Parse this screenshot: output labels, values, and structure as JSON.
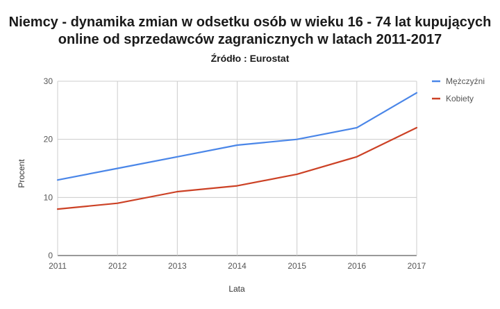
{
  "chart_data": {
    "type": "line",
    "title_line1": "Niemcy - dynamika zmian w odsetku osób w wieku 16 - 74 lat kupujących",
    "title_line2": "online od sprzedawców zagranicznych w latach  2011-2017",
    "subtitle": "Źródło : Eurostat",
    "xlabel": "Lata",
    "ylabel": "Procent",
    "x": [
      "2011",
      "2012",
      "2013",
      "2014",
      "2015",
      "2016",
      "2017"
    ],
    "ylim": [
      0,
      30
    ],
    "yticks": [
      0,
      10,
      20,
      30
    ],
    "grid": true,
    "legend_position": "right",
    "series": [
      {
        "name": "Mężczyźni",
        "color": "#4a86e8",
        "values": [
          13,
          15,
          17,
          19,
          20,
          22,
          28
        ]
      },
      {
        "name": "Kobiety",
        "color": "#cc4125",
        "values": [
          8,
          9,
          11,
          12,
          14,
          17,
          22
        ]
      }
    ]
  }
}
